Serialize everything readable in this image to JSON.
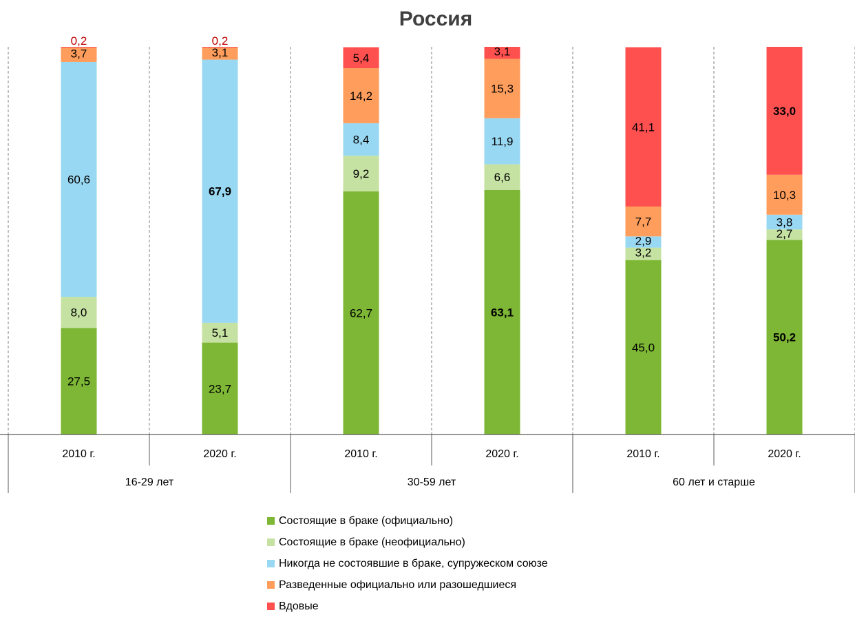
{
  "chart_data": {
    "type": "bar",
    "stacked": true,
    "percent_stacked": true,
    "title": "Россия",
    "groups": [
      "16-29 лет",
      "30-59 лет",
      "60 лет и старше"
    ],
    "categories": [
      "2010 г.",
      "2020 г.",
      "2010 г.",
      "2020 г.",
      "2010 г.",
      "2020 г."
    ],
    "category_group": [
      0,
      0,
      1,
      1,
      2,
      2
    ],
    "ylim": [
      0,
      100
    ],
    "grid": false,
    "legend_position": "bottom",
    "series": [
      {
        "name": "Состоящие в браке (официально)",
        "color": "#7DB735",
        "values": [
          27.5,
          23.7,
          62.7,
          63.1,
          45.0,
          50.2
        ],
        "labels": [
          "27,5",
          "23,7",
          "62,7",
          "63,1",
          "45,0",
          "50,2"
        ],
        "bold": [
          false,
          false,
          false,
          true,
          false,
          true
        ]
      },
      {
        "name": "Состоящие в браке (неофициально)",
        "color": "#C6E2A2",
        "values": [
          8.0,
          5.1,
          9.2,
          6.6,
          3.2,
          2.7
        ],
        "labels": [
          "8,0",
          "5,1",
          "9,2",
          "6,6",
          "3,2",
          "2,7"
        ],
        "bold": [
          false,
          false,
          false,
          false,
          false,
          false
        ]
      },
      {
        "name": "Никогда не состоявшие в браке, супружеском союзе",
        "color": "#99D8F2",
        "values": [
          60.6,
          67.9,
          8.4,
          11.9,
          2.9,
          3.8
        ],
        "labels": [
          "60,6",
          "67,9",
          "8,4",
          "11,9",
          "2,9",
          "3,8"
        ],
        "bold": [
          false,
          true,
          false,
          false,
          false,
          false
        ]
      },
      {
        "name": "Разведенные официально или разошедшиеся",
        "color": "#FF9D5C",
        "values": [
          3.7,
          3.1,
          14.2,
          15.3,
          7.7,
          10.3
        ],
        "labels": [
          "3,7",
          "3,1",
          "14,2",
          "15,3",
          "7,7",
          "10,3"
        ],
        "bold": [
          false,
          false,
          false,
          false,
          false,
          false
        ]
      },
      {
        "name": "Вдовые",
        "color": "#FF5050",
        "values": [
          0.2,
          0.2,
          5.4,
          3.1,
          41.1,
          33.0
        ],
        "labels": [
          "0,2",
          "0,2",
          "5,4",
          "3,1",
          "41,1",
          "33,0"
        ],
        "bold": [
          false,
          false,
          false,
          false,
          false,
          true
        ],
        "label_color": "#C00000"
      }
    ]
  }
}
